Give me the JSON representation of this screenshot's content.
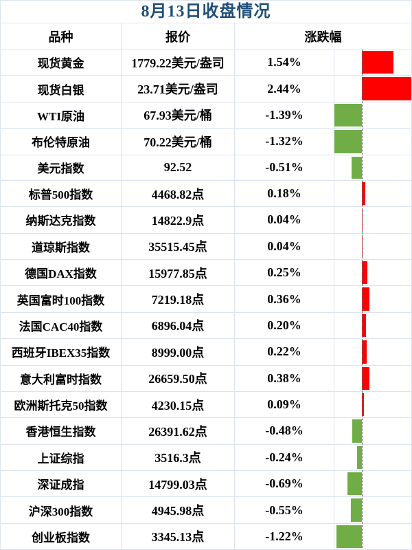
{
  "title": "8月13日收盘情况",
  "colors": {
    "title_text": "#1f4e79",
    "positive_bar": "#ff0000",
    "negative_bar": "#70ad47",
    "gridline": "#dbe3f0",
    "axis_dash": "#6b6b6b"
  },
  "table": {
    "headers": [
      "品种",
      "报价",
      "涨跌幅"
    ],
    "rows": [
      {
        "name": "现货黄金",
        "quote": "1779.22美元/盎司",
        "change": "1.54%",
        "pct": 1.54
      },
      {
        "name": "现货白银",
        "quote": "23.71美元/盎司",
        "change": "2.44%",
        "pct": 2.44
      },
      {
        "name": "WTI原油",
        "quote": "67.93美元/桶",
        "change": "-1.39%",
        "pct": -1.39
      },
      {
        "name": "布伦特原油",
        "quote": "70.22美元/桶",
        "change": "-1.32%",
        "pct": -1.32
      },
      {
        "name": "美元指数",
        "quote": "92.52",
        "change": "-0.51%",
        "pct": -0.51
      },
      {
        "name": "标普500指数",
        "quote": "4468.82点",
        "change": "0.18%",
        "pct": 0.18
      },
      {
        "name": "纳斯达克指数",
        "quote": "14822.9点",
        "change": "0.04%",
        "pct": 0.04
      },
      {
        "name": "道琼斯指数",
        "quote": "35515.45点",
        "change": "0.04%",
        "pct": 0.04
      },
      {
        "name": "德国DAX指数",
        "quote": "15977.85点",
        "change": "0.25%",
        "pct": 0.25
      },
      {
        "name": "英国富时100指数",
        "quote": "7219.18点",
        "change": "0.36%",
        "pct": 0.36
      },
      {
        "name": "法国CAC40指数",
        "quote": "6896.04点",
        "change": "0.20%",
        "pct": 0.2
      },
      {
        "name": "西班牙IBEX35指数",
        "quote": "8999.00点",
        "change": "0.22%",
        "pct": 0.22
      },
      {
        "name": "意大利富时指数",
        "quote": "26659.50点",
        "change": "0.38%",
        "pct": 0.38
      },
      {
        "name": "欧洲斯托克50指数",
        "quote": "4230.15点",
        "change": "0.09%",
        "pct": 0.09
      },
      {
        "name": "香港恒生指数",
        "quote": "26391.62点",
        "change": "-0.48%",
        "pct": -0.48
      },
      {
        "name": "上证综指",
        "quote": "3516.3点",
        "change": "-0.24%",
        "pct": -0.24
      },
      {
        "name": "深证成指",
        "quote": "14799.03点",
        "change": "-0.69%",
        "pct": -0.69
      },
      {
        "name": "沪深300指数",
        "quote": "4945.98点",
        "change": "-0.55%",
        "pct": -0.55
      },
      {
        "name": "创业板指数",
        "quote": "3345.13点",
        "change": "-1.22%",
        "pct": -1.22
      }
    ]
  },
  "chart_data": {
    "type": "bar",
    "orientation": "horizontal",
    "title": "8月13日收盘情况",
    "series_label": "涨跌幅",
    "unit": "%",
    "categories": [
      "现货黄金",
      "现货白银",
      "WTI原油",
      "布伦特原油",
      "美元指数",
      "标普500指数",
      "纳斯达克指数",
      "道琼斯指数",
      "德国DAX指数",
      "英国富时100指数",
      "法国CAC40指数",
      "西班牙IBEX35指数",
      "意大利富时指数",
      "欧洲斯托克50指数",
      "香港恒生指数",
      "上证综指",
      "深证成指",
      "沪深300指数",
      "创业板指数"
    ],
    "values": [
      1.54,
      2.44,
      -1.39,
      -1.32,
      -0.51,
      0.18,
      0.04,
      0.04,
      0.25,
      0.36,
      0.2,
      0.22,
      0.38,
      0.09,
      -0.48,
      -0.24,
      -0.69,
      -0.55,
      -1.22
    ],
    "xlim": [
      -1.4,
      2.44
    ],
    "grid": true,
    "legend": false,
    "positive_color": "#ff0000",
    "negative_color": "#70ad47"
  }
}
